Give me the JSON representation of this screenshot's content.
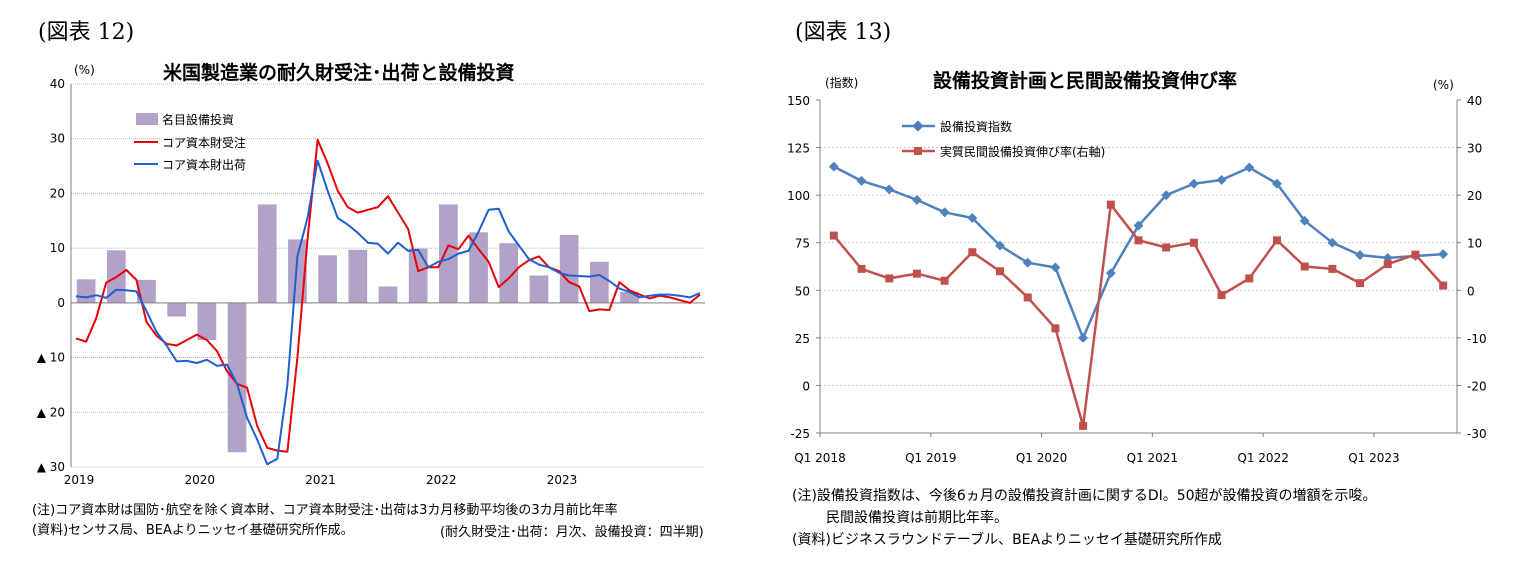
{
  "chart_data": [
    {
      "figure_label": "(図表 12)",
      "title": "米国製造業の耐久財受注･出荷と設備投資",
      "type": "bar+line",
      "y_unit": "(%)",
      "ylim": [
        -30,
        40
      ],
      "y_ticks": [
        40,
        30,
        20,
        10,
        0,
        -10,
        -20,
        -30
      ],
      "y_tick_labels": [
        "40",
        "30",
        "20",
        "10",
        "0",
        "▲ 10",
        "▲ 20",
        "▲ 30"
      ],
      "x_tick_labels": [
        "2019",
        "2020",
        "2021",
        "2022",
        "2023"
      ],
      "grid": true,
      "legend_position": "top-left",
      "bars": {
        "name": "名目設備投資",
        "color": "#b3a2c7",
        "x": [
          "2019Q1",
          "2019Q2",
          "2019Q3",
          "2019Q4",
          "2020Q1",
          "2020Q2",
          "2020Q3",
          "2020Q4",
          "2021Q1",
          "2021Q2",
          "2021Q3",
          "2021Q4",
          "2022Q1",
          "2022Q2",
          "2022Q3",
          "2022Q4",
          "2023Q1",
          "2023Q2",
          "2023Q3"
        ],
        "values": [
          4.3,
          9.6,
          4.2,
          -2.5,
          -6.8,
          -27.3,
          18.0,
          11.6,
          8.7,
          9.7,
          3.0,
          9.9,
          18.0,
          12.9,
          10.9,
          5.0,
          12.4,
          7.5,
          2.0
        ]
      },
      "series": [
        {
          "name": "コア資本財受注",
          "color": "#e8000b",
          "values": [
            -6.5,
            -7.1,
            -2.8,
            3.7,
            4.7,
            6.0,
            4.2,
            -3.5,
            -6.0,
            -7.5,
            -7.8,
            -6.8,
            -5.8,
            -6.8,
            -8.8,
            -12.5,
            -14.8,
            -15.5,
            -22.5,
            -26.5,
            -27.0,
            -27.2,
            -10.0,
            11.5,
            29.8,
            25.5,
            20.5,
            17.5,
            16.5,
            17.0,
            17.5,
            19.5,
            16.5,
            13.5,
            5.8,
            6.5,
            6.5,
            10.5,
            9.8,
            12.3,
            9.8,
            7.5,
            2.9,
            4.5,
            6.5,
            7.8,
            8.5,
            6.5,
            5.8,
            3.8,
            3.0,
            -1.5,
            -1.2,
            -1.3,
            3.8,
            2.3,
            1.5,
            0.8,
            1.3,
            1.0,
            0.5,
            0.0,
            1.5
          ]
        },
        {
          "name": "コア資本財出荷",
          "color": "#1f5fd1",
          "values": [
            1.2,
            1.0,
            1.4,
            0.9,
            2.4,
            2.3,
            2.1,
            -1.5,
            -5.3,
            -7.8,
            -10.7,
            -10.6,
            -11.0,
            -10.4,
            -11.5,
            -11.3,
            -14.8,
            -21.0,
            -25.0,
            -29.5,
            -28.5,
            -15.0,
            8.5,
            15.5,
            26.0,
            20.5,
            15.5,
            14.3,
            12.8,
            11.0,
            10.8,
            9.0,
            11.0,
            9.5,
            9.7,
            6.5,
            7.5,
            8.0,
            9.0,
            9.5,
            13.0,
            17.0,
            17.2,
            13.0,
            10.5,
            8.0,
            7.0,
            6.5,
            5.5,
            5.0,
            4.9,
            4.8,
            5.1,
            4.0,
            2.6,
            2.0,
            1.0,
            1.3,
            1.5,
            1.5,
            1.3,
            1.0,
            1.8
          ]
        }
      ],
      "notes": [
        "(注)コア資本財は国防･航空を除く資本財、コア資本財受注･出荷は3カ月移動平均後の3カ月前比年率",
        "(資料)センサス局、BEAよりニッセイ基礎研究所作成。",
        "(耐久財受注･出荷：月次、設備投資：四半期)"
      ]
    },
    {
      "figure_label": "(図表 13)",
      "title": "設備投資計画と民間設備投資伸び率",
      "type": "line",
      "y_unit_left": "(指数)",
      "y_unit_right": "(%)",
      "ylim_left": [
        -25,
        150
      ],
      "ylim_right": [
        -30,
        40
      ],
      "y_ticks_left": [
        150,
        125,
        100,
        75,
        50,
        25,
        0,
        -25
      ],
      "y_ticks_right": [
        40,
        30,
        20,
        10,
        0,
        -10,
        -20,
        -30
      ],
      "x": [
        "Q1 2018",
        "Q2 2018",
        "Q3 2018",
        "Q4 2018",
        "Q1 2019",
        "Q2 2019",
        "Q3 2019",
        "Q4 2019",
        "Q1 2020",
        "Q2 2020",
        "Q3 2020",
        "Q4 2020",
        "Q1 2021",
        "Q2 2021",
        "Q3 2021",
        "Q4 2021",
        "Q1 2022",
        "Q2 2022",
        "Q3 2022",
        "Q4 2022",
        "Q1 2023",
        "Q2 2023",
        "Q3 2023"
      ],
      "x_tick_labels": [
        "Q1 2018",
        "Q1 2019",
        "Q1 2020",
        "Q1 2021",
        "Q1 2022",
        "Q1 2023"
      ],
      "grid": true,
      "legend_position": "top-left",
      "series": [
        {
          "name": "設備投資指数",
          "axis": "left",
          "color": "#4f81bd",
          "marker": "diamond",
          "values": [
            115,
            107.5,
            103,
            97.5,
            91,
            88,
            73.5,
            64.5,
            62,
            25,
            59,
            84,
            100,
            106,
            108,
            114.5,
            106,
            86.5,
            75,
            68.5,
            67,
            68,
            69
          ]
        },
        {
          "name": "実質民間設備投資伸び率(右軸)",
          "axis": "right",
          "color": "#c0504d",
          "marker": "square",
          "values": [
            11.5,
            4.5,
            2.5,
            3.5,
            2.0,
            8.0,
            4.0,
            -1.5,
            -8.0,
            -28.5,
            18.0,
            10.5,
            9.0,
            10.0,
            -1.0,
            2.5,
            10.5,
            5.0,
            4.5,
            1.5,
            5.5,
            7.5,
            1.0
          ]
        }
      ],
      "notes": [
        "(注)設備投資指数は、今後6ヵ月の設備投資計画に関するDI。50超が設備投資の増額を示唆。",
        "民間設備投資は前期比年率。",
        "(資料)ビジネスラウンドテーブル、BEAよりニッセイ基礎研究所作成"
      ]
    }
  ]
}
